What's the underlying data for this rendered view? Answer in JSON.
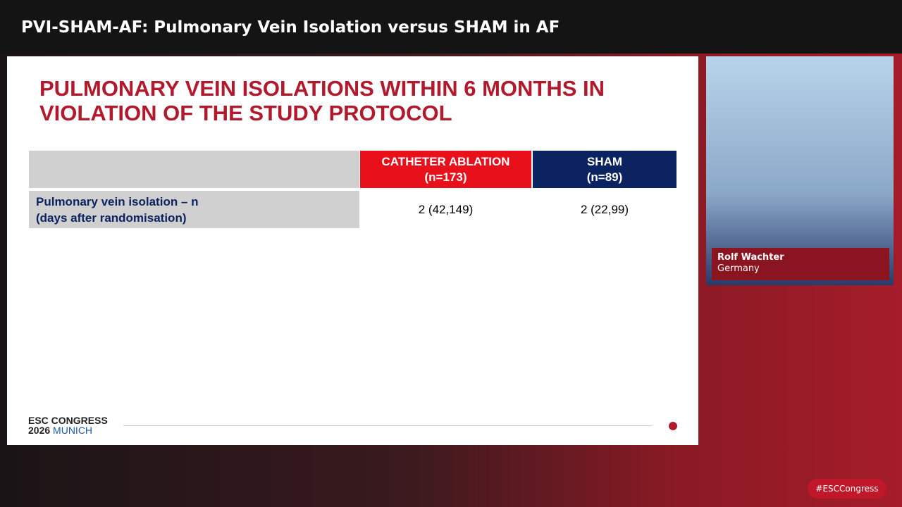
{
  "header": {
    "title": "PVI-SHAM-AF: Pulmonary Vein Isolation versus SHAM in AF"
  },
  "slide": {
    "title": "PULMONARY VEIN ISOLATIONS WITHIN 6 MONTHS IN VIOLATION OF THE STUDY PROTOCOL",
    "table": {
      "columns": [
        {
          "name": "CATHETER ABLATION",
          "n": "(n=173)"
        },
        {
          "name": "SHAM",
          "n": "(n=89)"
        }
      ],
      "rows": [
        {
          "label": [
            "Pulmonary vein isolation – n",
            "(days after randomisation)"
          ],
          "cells": [
            "2 (42,149)",
            "2 (22,99)"
          ]
        }
      ]
    },
    "footer": {
      "line1": "ESC CONGRESS",
      "year": "2026",
      "city": "MUNICH"
    }
  },
  "speaker": {
    "name": "Rolf Wachter",
    "country": "Germany"
  },
  "hashtag": "#ESCCongress"
}
